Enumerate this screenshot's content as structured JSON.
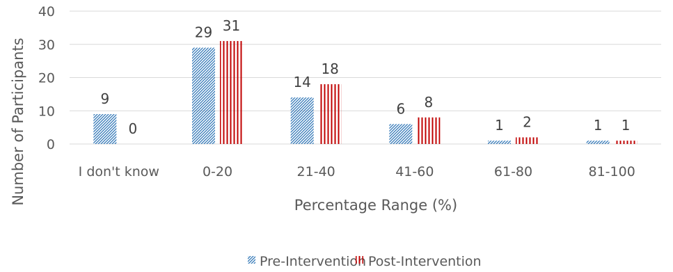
{
  "chart_data": {
    "type": "bar",
    "categories": [
      "I don't know",
      "0-20",
      "21-40",
      "41-60",
      "61-80",
      "81-100"
    ],
    "series": [
      {
        "name": "Pre-Intervention",
        "values": [
          9,
          29,
          14,
          6,
          1,
          1
        ],
        "color": "#2e75b6",
        "pattern": "diagonal-hatch"
      },
      {
        "name": "Post-Intervention",
        "values": [
          0,
          31,
          18,
          8,
          2,
          1
        ],
        "color": "#c00000",
        "pattern": "vertical-lines"
      }
    ],
    "xlabel": "Percentage Range (%)",
    "ylabel": "Number of Participants",
    "ylim": [
      0,
      40
    ],
    "yticks": [
      0,
      10,
      20,
      30,
      40
    ],
    "grid": true,
    "legend": "bottom"
  }
}
